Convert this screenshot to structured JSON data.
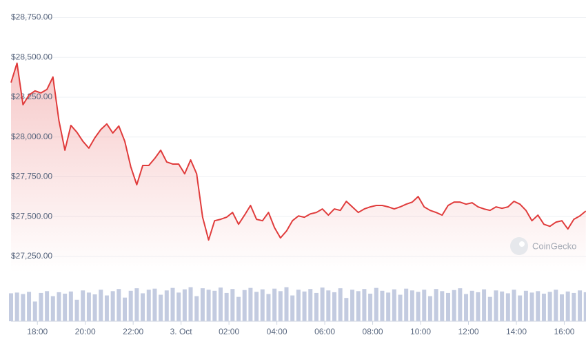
{
  "chart_data": {
    "type": "line",
    "color": "#e03b3b",
    "x": [
      16.9,
      17.15,
      17.4,
      17.65,
      17.9,
      18.15,
      18.4,
      18.65,
      18.9,
      19.15,
      19.4,
      19.65,
      19.9,
      20.15,
      20.4,
      20.65,
      20.9,
      21.15,
      21.4,
      21.65,
      21.9,
      22.15,
      22.4,
      22.65,
      22.9,
      23.15,
      23.4,
      23.65,
      23.9,
      24.15,
      24.4,
      24.65,
      24.9,
      25.15,
      25.4,
      25.65,
      25.9,
      26.15,
      26.4,
      26.65,
      26.9,
      27.15,
      27.4,
      27.65,
      27.9,
      28.15,
      28.4,
      28.65,
      28.9,
      29.15,
      29.4,
      29.65,
      29.9,
      30.15,
      30.4,
      30.65,
      30.9,
      31.15,
      31.4,
      31.65,
      31.9,
      32.15,
      32.4,
      32.65,
      32.9,
      33.15,
      33.4,
      33.65,
      33.9,
      34.15,
      34.4,
      34.65,
      34.9,
      35.15,
      35.4,
      35.65,
      35.9,
      36.15,
      36.4,
      36.65,
      36.9,
      37.15,
      37.4,
      37.65,
      37.9,
      38.15,
      38.4,
      38.65,
      38.9,
      39.15,
      39.4,
      39.65,
      39.9,
      40.15,
      40.4,
      40.65,
      40.9
    ],
    "values": [
      28342,
      28464,
      28203,
      28264,
      28290,
      28277,
      28299,
      28377,
      28103,
      27917,
      28073,
      28030,
      27973,
      27930,
      27995,
      28047,
      28082,
      28025,
      28069,
      27973,
      27813,
      27700,
      27821,
      27821,
      27865,
      27917,
      27843,
      27830,
      27830,
      27769,
      27856,
      27769,
      27496,
      27353,
      27474,
      27483,
      27496,
      27526,
      27452,
      27509,
      27570,
      27483,
      27474,
      27526,
      27431,
      27366,
      27409,
      27474,
      27504,
      27496,
      27517,
      27526,
      27548,
      27509,
      27548,
      27539,
      27596,
      27561,
      27526,
      27548,
      27561,
      27570,
      27570,
      27561,
      27548,
      27561,
      27578,
      27591,
      27626,
      27561,
      27539,
      27526,
      27509,
      27570,
      27591,
      27591,
      27578,
      27587,
      27561,
      27548,
      27539,
      27561,
      27552,
      27561,
      27596,
      27578,
      27539,
      27474,
      27509,
      27452,
      27439,
      27465,
      27474,
      27422,
      27483,
      27504,
      27535
    ],
    "volume": {
      "color": "#c3cbe0",
      "lim": [
        0,
        100
      ],
      "values": [
        78,
        80,
        76,
        82,
        55,
        79,
        84,
        70,
        81,
        77,
        83,
        60,
        86,
        80,
        75,
        88,
        72,
        84,
        90,
        66,
        85,
        92,
        78,
        88,
        91,
        74,
        86,
        93,
        80,
        89,
        95,
        70,
        92,
        88,
        85,
        94,
        79,
        90,
        68,
        87,
        93,
        82,
        89,
        76,
        91,
        84,
        95,
        72,
        88,
        83,
        90,
        79,
        94,
        86,
        81,
        92,
        65,
        88,
        84,
        90,
        77,
        93,
        85,
        80,
        89,
        74,
        91,
        86,
        82,
        88,
        70,
        90,
        84,
        79,
        87,
        92,
        76,
        85,
        81,
        89,
        68,
        86,
        83,
        78,
        88,
        72,
        85,
        80,
        84,
        77,
        82,
        88,
        75,
        83,
        79,
        86,
        81
      ]
    },
    "xlim": [
      16.9,
      40.85
    ],
    "xticks": [
      {
        "value": 18,
        "label": "18:00"
      },
      {
        "value": 20,
        "label": "20:00"
      },
      {
        "value": 22,
        "label": "22:00"
      },
      {
        "value": 24,
        "label": "3. Oct"
      },
      {
        "value": 26,
        "label": "02:00"
      },
      {
        "value": 28,
        "label": "04:00"
      },
      {
        "value": 30,
        "label": "06:00"
      },
      {
        "value": 32,
        "label": "08:00"
      },
      {
        "value": 34,
        "label": "10:00"
      },
      {
        "value": 36,
        "label": "12:00"
      },
      {
        "value": 38,
        "label": "14:00"
      },
      {
        "value": 40,
        "label": "16:00"
      }
    ],
    "ylim": [
      27150,
      28800
    ],
    "yticks": [
      {
        "value": 27250,
        "label": "$27,250.00"
      },
      {
        "value": 27500,
        "label": "$27,500.00"
      },
      {
        "value": 27750,
        "label": "$27,750.00"
      },
      {
        "value": 28000,
        "label": "$28,000.00"
      },
      {
        "value": 28250,
        "label": "$28,250.00"
      },
      {
        "value": 28500,
        "label": "$28,500.00"
      },
      {
        "value": 28750,
        "label": "$28,750.00"
      }
    ],
    "grid": true,
    "watermark": "CoinGecko"
  }
}
